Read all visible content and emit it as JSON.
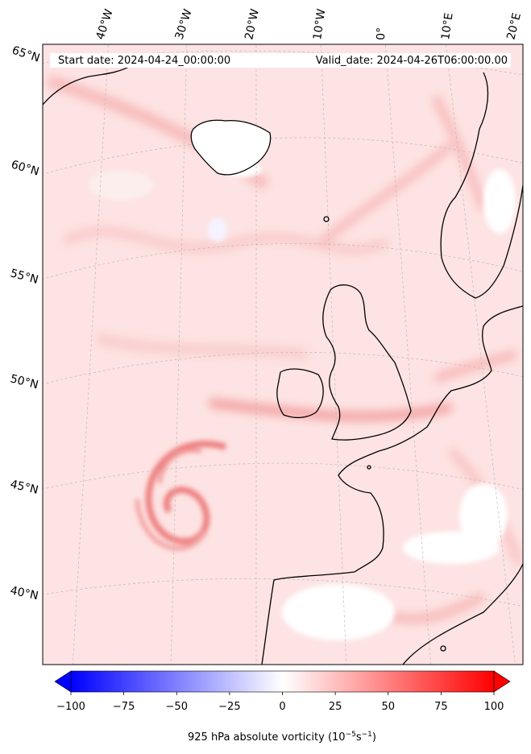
{
  "header": {
    "start_date": "Start date: 2024-04-24_00:00:00",
    "valid_date": "Valid_date: 2024-04-26T06:00:00.00"
  },
  "longitude_labels": [
    "40°W",
    "30°W",
    "20°W",
    "10°W",
    "0°",
    "10°E",
    "20°E"
  ],
  "latitude_labels": [
    "65°N",
    "60°N",
    "55°N",
    "50°N",
    "45°N",
    "40°N"
  ],
  "colorbar": {
    "title": "925 hPa absolute vorticity (10",
    "title_unit_exp1": "−5",
    "title_unit_mid": "s",
    "title_unit_exp2": "−1",
    "title_close": ")",
    "ticks": [
      "−100",
      "−75",
      "−50",
      "−25",
      "0",
      "25",
      "50",
      "75",
      "100"
    ],
    "tick_values": [
      -100,
      -75,
      -50,
      -25,
      0,
      25,
      50,
      75,
      100
    ],
    "vmin": -100,
    "vmax": 100,
    "extend": "both",
    "negative_color": "#0000ff",
    "positive_color": "#ff0000",
    "neutral_color": "#ffffff"
  },
  "map_colors": {
    "background": "#fde3e3",
    "land_outline": "#000000",
    "graticule": "#bbbbbb"
  }
}
